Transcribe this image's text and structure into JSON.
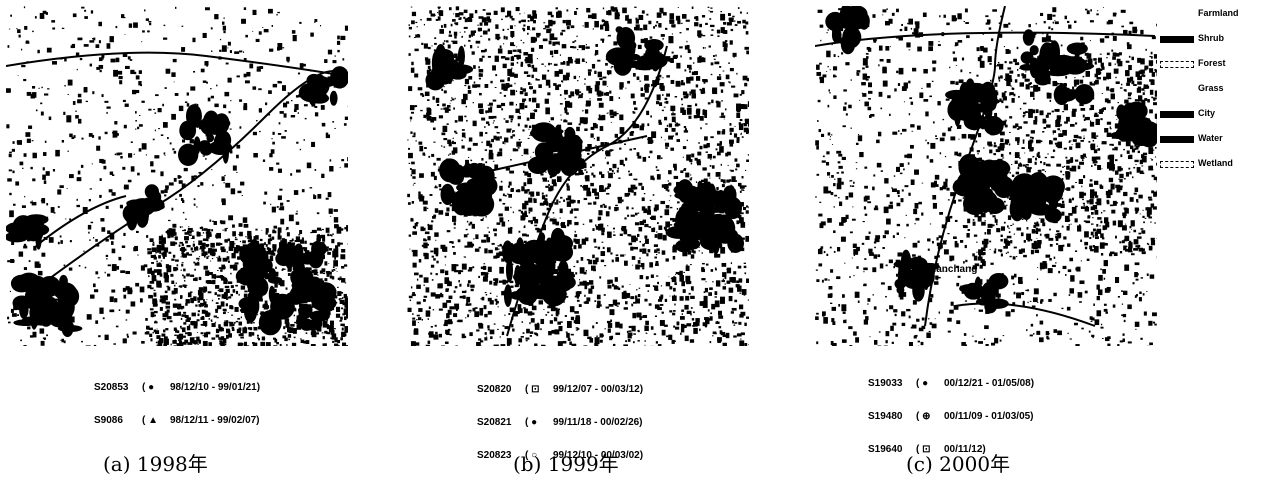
{
  "panels": [
    {
      "caption": "(a)  1998年",
      "scenes": [
        {
          "id": "S20853",
          "symbol": "( ●",
          "dates": "98/12/10 - 99/01/21)"
        },
        {
          "id": "S9086",
          "symbol": "( ▲",
          "dates": "98/12/11 - 99/02/07)"
        }
      ]
    },
    {
      "caption": "(b)  1999年",
      "scenes": [
        {
          "id": "S20820",
          "symbol": "( ⊡",
          "dates": "99/12/07 - 00/03/12)"
        },
        {
          "id": "S20821",
          "symbol": "( ●",
          "dates": "99/11/18 - 00/02/26)"
        },
        {
          "id": "S20823",
          "symbol": "( ○",
          "dates": "99/12/10 - 00/03/02)"
        }
      ]
    },
    {
      "caption": "(c)  2000年",
      "city_label": "Nanchang",
      "scenes": [
        {
          "id": "S19033",
          "symbol": "( ●",
          "dates": "00/12/21 - 01/05/08)"
        },
        {
          "id": "S19480",
          "symbol": "( ⊕",
          "dates": "00/11/09 - 01/03/05)"
        },
        {
          "id": "S19640",
          "symbol": "( ⊡",
          "dates": "00/11/12)"
        }
      ]
    }
  ],
  "legend": [
    {
      "label": "Farmland",
      "swatch": "none"
    },
    {
      "label": "Shrub",
      "swatch": "solid"
    },
    {
      "label": "Forest",
      "swatch": "dashed"
    },
    {
      "label": "Grass",
      "swatch": "none"
    },
    {
      "label": "City",
      "swatch": "solid"
    },
    {
      "label": "Water",
      "swatch": "solid"
    },
    {
      "label": "Wetland",
      "swatch": "dashed"
    }
  ],
  "colors": {
    "land_cover_dark": "#000000",
    "background": "#ffffff"
  }
}
